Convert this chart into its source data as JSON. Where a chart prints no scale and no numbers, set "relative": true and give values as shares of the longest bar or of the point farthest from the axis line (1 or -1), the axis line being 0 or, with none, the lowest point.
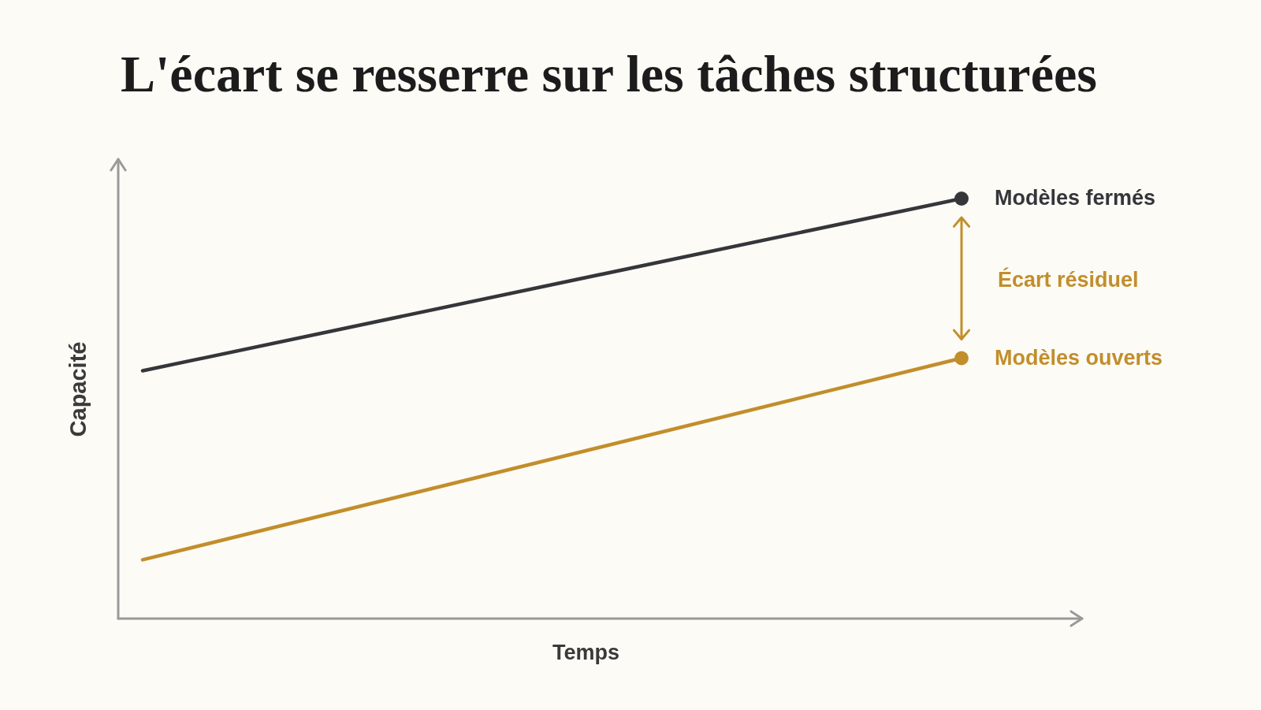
{
  "chart_data": {
    "type": "line",
    "title": "L'écart se resserre sur les tâches structurées",
    "xlabel": "Temps",
    "ylabel": "Capacité",
    "categories": [
      null,
      null
    ],
    "relative": true,
    "marker": "circle",
    "series": [
      {
        "name": "Modèles fermés",
        "color": "#35363a",
        "values": [
          0.59,
          1
        ]
      },
      {
        "name": "Modèles ouverts",
        "color": "#c28e2b",
        "values": [
          0.14,
          0.62
        ]
      }
    ],
    "annotations": [
      "Écart résiduel"
    ]
  }
}
